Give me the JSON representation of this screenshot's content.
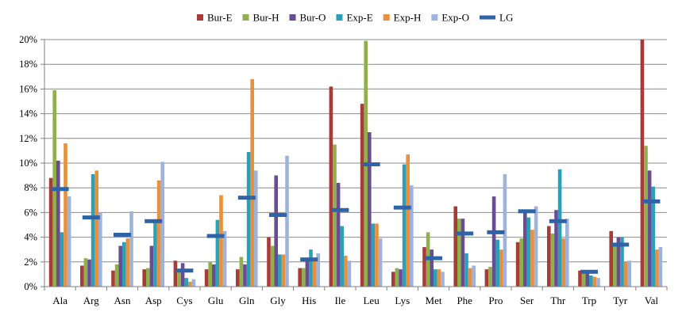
{
  "chart_data": {
    "type": "bar",
    "title": "",
    "xlabel": "",
    "ylabel": "",
    "ylim": [
      0,
      20
    ],
    "ytick_step": 2,
    "ytick_format": "percent",
    "grid": true,
    "legend_position": "top",
    "categories": [
      "Ala",
      "Arg",
      "Asn",
      "Asp",
      "Cys",
      "Glu",
      "Gln",
      "Gly",
      "His",
      "Ile",
      "Leu",
      "Lys",
      "Met",
      "Phe",
      "Pro",
      "Ser",
      "Thr",
      "Trp",
      "Tyr",
      "Val"
    ],
    "series": [
      {
        "name": "Bur-E",
        "color": "#a83b38",
        "values": [
          8.8,
          1.7,
          1.3,
          1.4,
          2.1,
          1.4,
          1.4,
          4.0,
          1.5,
          16.2,
          14.8,
          1.2,
          3.2,
          6.5,
          1.4,
          3.6,
          4.9,
          1.3,
          4.5,
          20.0
        ]
      },
      {
        "name": "Bur-H",
        "color": "#8fb04a",
        "values": [
          15.9,
          2.3,
          1.8,
          1.5,
          1.3,
          2.0,
          2.4,
          3.3,
          1.5,
          11.5,
          19.9,
          1.5,
          4.4,
          5.5,
          1.6,
          3.9,
          4.3,
          1.2,
          3.4,
          11.4
        ]
      },
      {
        "name": "Bur-O",
        "color": "#6a4c93",
        "values": [
          10.2,
          2.2,
          3.3,
          3.3,
          1.9,
          1.8,
          1.8,
          9.0,
          2.2,
          8.4,
          12.5,
          1.4,
          3.0,
          5.5,
          7.3,
          6.2,
          6.2,
          1.1,
          4.0,
          9.4
        ]
      },
      {
        "name": "Exp-E",
        "color": "#2aa1b8",
        "values": [
          4.4,
          9.1,
          3.6,
          5.4,
          0.7,
          5.4,
          10.9,
          2.6,
          3.0,
          4.9,
          5.1,
          9.9,
          1.4,
          2.7,
          3.8,
          5.6,
          9.5,
          0.9,
          4.0,
          8.1
        ]
      },
      {
        "name": "Exp-H",
        "color": "#e8903c",
        "values": [
          11.6,
          9.4,
          3.9,
          8.6,
          0.4,
          7.4,
          16.8,
          2.6,
          2.2,
          2.5,
          5.1,
          10.7,
          1.4,
          1.5,
          3.0,
          4.6,
          3.9,
          0.8,
          2.0,
          3.0
        ]
      },
      {
        "name": "Exp-O",
        "color": "#9eb3dc",
        "values": [
          7.3,
          6.0,
          6.1,
          10.1,
          0.6,
          4.5,
          9.4,
          10.6,
          2.7,
          2.1,
          3.9,
          8.2,
          1.2,
          1.7,
          9.1,
          6.5,
          5.5,
          0.7,
          2.1,
          3.2
        ]
      }
    ],
    "line_series": {
      "name": "LG",
      "color": "#2f63a7",
      "marker": "dash",
      "values": [
        7.9,
        5.6,
        4.2,
        5.3,
        1.3,
        4.1,
        7.2,
        5.8,
        2.2,
        6.2,
        9.9,
        6.4,
        2.3,
        4.3,
        4.4,
        6.1,
        5.3,
        1.2,
        3.4,
        6.9
      ]
    }
  }
}
